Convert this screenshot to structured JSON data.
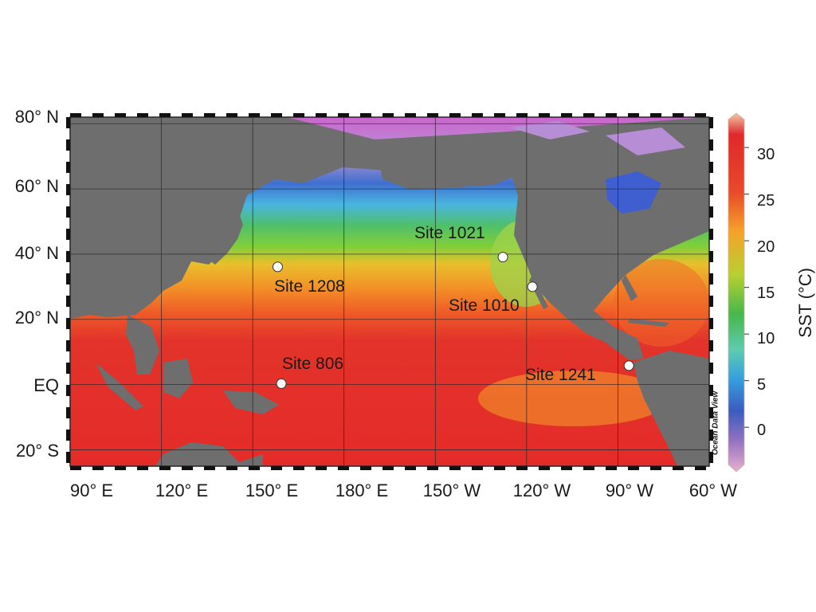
{
  "map": {
    "lat_labels": [
      "80° N",
      "60° N",
      "40° N",
      "20° N",
      "EQ",
      "20° S"
    ],
    "lon_labels": [
      "90° E",
      "120° E",
      "150° E",
      "180° E",
      "150° W",
      "120° W",
      "90° W",
      "60° W"
    ],
    "sites": [
      {
        "name": "Site 1208",
        "lat": 36.1,
        "lon": 158.2
      },
      {
        "name": "Site 1021",
        "lat": 39.1,
        "lon": -127.8
      },
      {
        "name": "Site 1010",
        "lat": 30.0,
        "lon": -118.1
      },
      {
        "name": "Site 806",
        "lat": 0.3,
        "lon": 159.4
      },
      {
        "name": "Site 1241",
        "lat": 5.8,
        "lon": -86.4
      }
    ],
    "credit": "Ocean Data View"
  },
  "colorbar": {
    "title": "SST (°C)",
    "ticks": [
      "30",
      "25",
      "20",
      "15",
      "10",
      "5",
      "0"
    ],
    "tick_values": [
      30,
      25,
      20,
      15,
      10,
      5,
      0
    ],
    "range": [
      -4,
      33
    ],
    "colors": [
      "#e6a8c8",
      "#c078c0",
      "#5a58b8",
      "#2f6fd0",
      "#4bb8e0",
      "#5ecba0",
      "#46b84a",
      "#8ccf3a",
      "#d9d02a",
      "#f5a22a",
      "#f07a26",
      "#e84a2a",
      "#e02a26",
      "#f0c8a8"
    ]
  },
  "colors": {
    "land": "#6e6e6e",
    "grid": "#262626",
    "marker": "#ffffff",
    "marker_stroke": "#333333"
  }
}
